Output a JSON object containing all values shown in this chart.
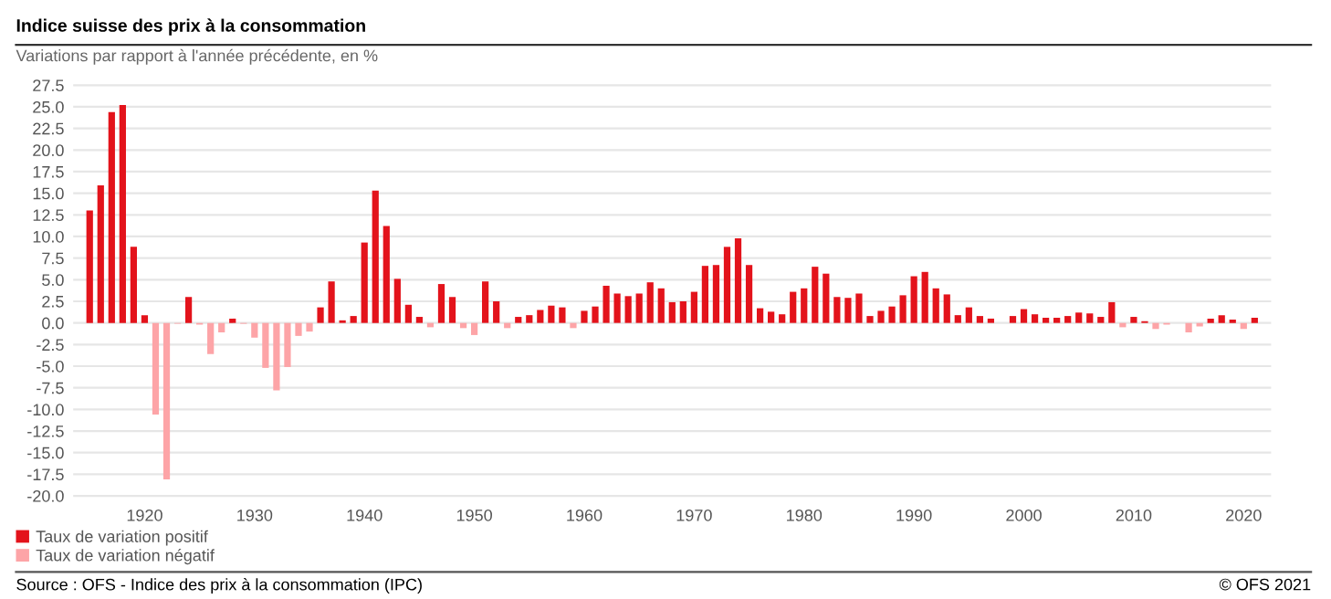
{
  "chart_data": {
    "type": "bar",
    "title": "Indice suisse des prix à la consommation",
    "subtitle": "Variations par rapport à l'année précédente, en %",
    "x": [
      1915,
      1916,
      1917,
      1918,
      1919,
      1920,
      1921,
      1922,
      1923,
      1924,
      1925,
      1926,
      1927,
      1928,
      1929,
      1930,
      1931,
      1932,
      1933,
      1934,
      1935,
      1936,
      1937,
      1938,
      1939,
      1940,
      1941,
      1942,
      1943,
      1944,
      1945,
      1946,
      1947,
      1948,
      1949,
      1950,
      1951,
      1952,
      1953,
      1954,
      1955,
      1956,
      1957,
      1958,
      1959,
      1960,
      1961,
      1962,
      1963,
      1964,
      1965,
      1966,
      1967,
      1968,
      1969,
      1970,
      1971,
      1972,
      1973,
      1974,
      1975,
      1976,
      1977,
      1978,
      1979,
      1980,
      1981,
      1982,
      1983,
      1984,
      1985,
      1986,
      1987,
      1988,
      1989,
      1990,
      1991,
      1992,
      1993,
      1994,
      1995,
      1996,
      1997,
      1998,
      1999,
      2000,
      2001,
      2002,
      2003,
      2004,
      2005,
      2006,
      2007,
      2008,
      2009,
      2010,
      2011,
      2012,
      2013,
      2014,
      2015,
      2016,
      2017,
      2018,
      2019,
      2020,
      2021
    ],
    "series": [
      {
        "name": "Taux de variation positif",
        "color": "#e3131b",
        "values": [
          13.0,
          15.9,
          24.4,
          25.2,
          8.8,
          0.9,
          null,
          null,
          null,
          3.0,
          null,
          null,
          null,
          0.5,
          null,
          null,
          null,
          null,
          null,
          null,
          null,
          1.8,
          4.8,
          0.3,
          0.8,
          9.3,
          15.3,
          11.2,
          5.1,
          2.1,
          0.7,
          null,
          4.5,
          3.0,
          null,
          null,
          4.8,
          2.5,
          null,
          0.7,
          0.9,
          1.5,
          2.0,
          1.8,
          null,
          1.4,
          1.9,
          4.3,
          3.4,
          3.1,
          3.4,
          4.7,
          4.0,
          2.4,
          2.5,
          3.6,
          6.6,
          6.7,
          8.8,
          9.8,
          6.7,
          1.7,
          1.3,
          1.0,
          3.6,
          4.0,
          6.5,
          5.7,
          3.0,
          2.9,
          3.4,
          0.8,
          1.4,
          1.9,
          3.2,
          5.4,
          5.9,
          4.0,
          3.3,
          0.9,
          1.8,
          0.8,
          0.5,
          0.0,
          0.8,
          1.6,
          1.0,
          0.6,
          0.6,
          0.8,
          1.2,
          1.1,
          0.7,
          2.4,
          null,
          0.7,
          0.2,
          null,
          null,
          0.0,
          null,
          null,
          0.5,
          0.9,
          0.4,
          null,
          0.6
        ]
      },
      {
        "name": "Taux de variation négatif",
        "color": "#fda4a7",
        "values": [
          null,
          null,
          null,
          null,
          null,
          null,
          -10.6,
          -18.1,
          -0.1,
          null,
          -0.2,
          -3.6,
          -1.1,
          null,
          -0.1,
          -1.7,
          -5.2,
          -7.8,
          -5.1,
          -1.5,
          -1.0,
          null,
          null,
          null,
          null,
          null,
          null,
          null,
          null,
          null,
          null,
          -0.5,
          null,
          null,
          -0.6,
          -1.4,
          null,
          null,
          -0.6,
          null,
          null,
          null,
          null,
          null,
          -0.6,
          null,
          null,
          null,
          null,
          null,
          null,
          null,
          null,
          null,
          null,
          null,
          null,
          null,
          null,
          null,
          null,
          null,
          null,
          null,
          null,
          null,
          null,
          null,
          null,
          null,
          null,
          null,
          null,
          null,
          null,
          null,
          null,
          null,
          null,
          null,
          null,
          null,
          null,
          null,
          null,
          null,
          null,
          null,
          null,
          null,
          null,
          null,
          null,
          null,
          -0.5,
          null,
          null,
          -0.7,
          -0.2,
          null,
          -1.1,
          -0.4,
          null,
          null,
          null,
          -0.7,
          null
        ]
      }
    ],
    "xlim": [
      1913.5,
      2022.5
    ],
    "xticks": [
      1920,
      1930,
      1940,
      1950,
      1960,
      1970,
      1980,
      1990,
      2000,
      2010,
      2020
    ],
    "ylim": [
      -20.5,
      28.0
    ],
    "yticks": [
      {
        "value": -20,
        "label": "-20.0"
      },
      {
        "value": -17.5,
        "label": "-17.5"
      },
      {
        "value": -15,
        "label": "-15.0"
      },
      {
        "value": -12.5,
        "label": "-12.5"
      },
      {
        "value": -10,
        "label": "-10.0"
      },
      {
        "value": -7.5,
        "label": "-7.5"
      },
      {
        "value": -5,
        "label": "-5.0"
      },
      {
        "value": -2.5,
        "label": "-2.5"
      },
      {
        "value": 0,
        "label": "0.0"
      },
      {
        "value": 2.5,
        "label": "2.5"
      },
      {
        "value": 5,
        "label": "5.0"
      },
      {
        "value": 7.5,
        "label": "7.5"
      },
      {
        "value": 10,
        "label": "10.0"
      },
      {
        "value": 12.5,
        "label": "12.5"
      },
      {
        "value": 15,
        "label": "15.0"
      },
      {
        "value": 17.5,
        "label": "17.5"
      },
      {
        "value": 20,
        "label": "20.0"
      },
      {
        "value": 22.5,
        "label": "22.5"
      },
      {
        "value": 25,
        "label": "25.0"
      },
      {
        "value": 27.5,
        "label": "27.5"
      }
    ],
    "grid": "y",
    "legend": "bottom left",
    "annotations": [
      "Source : OFS - Indice des prix à la consommation (IPC)",
      "© OFS 2021"
    ]
  }
}
